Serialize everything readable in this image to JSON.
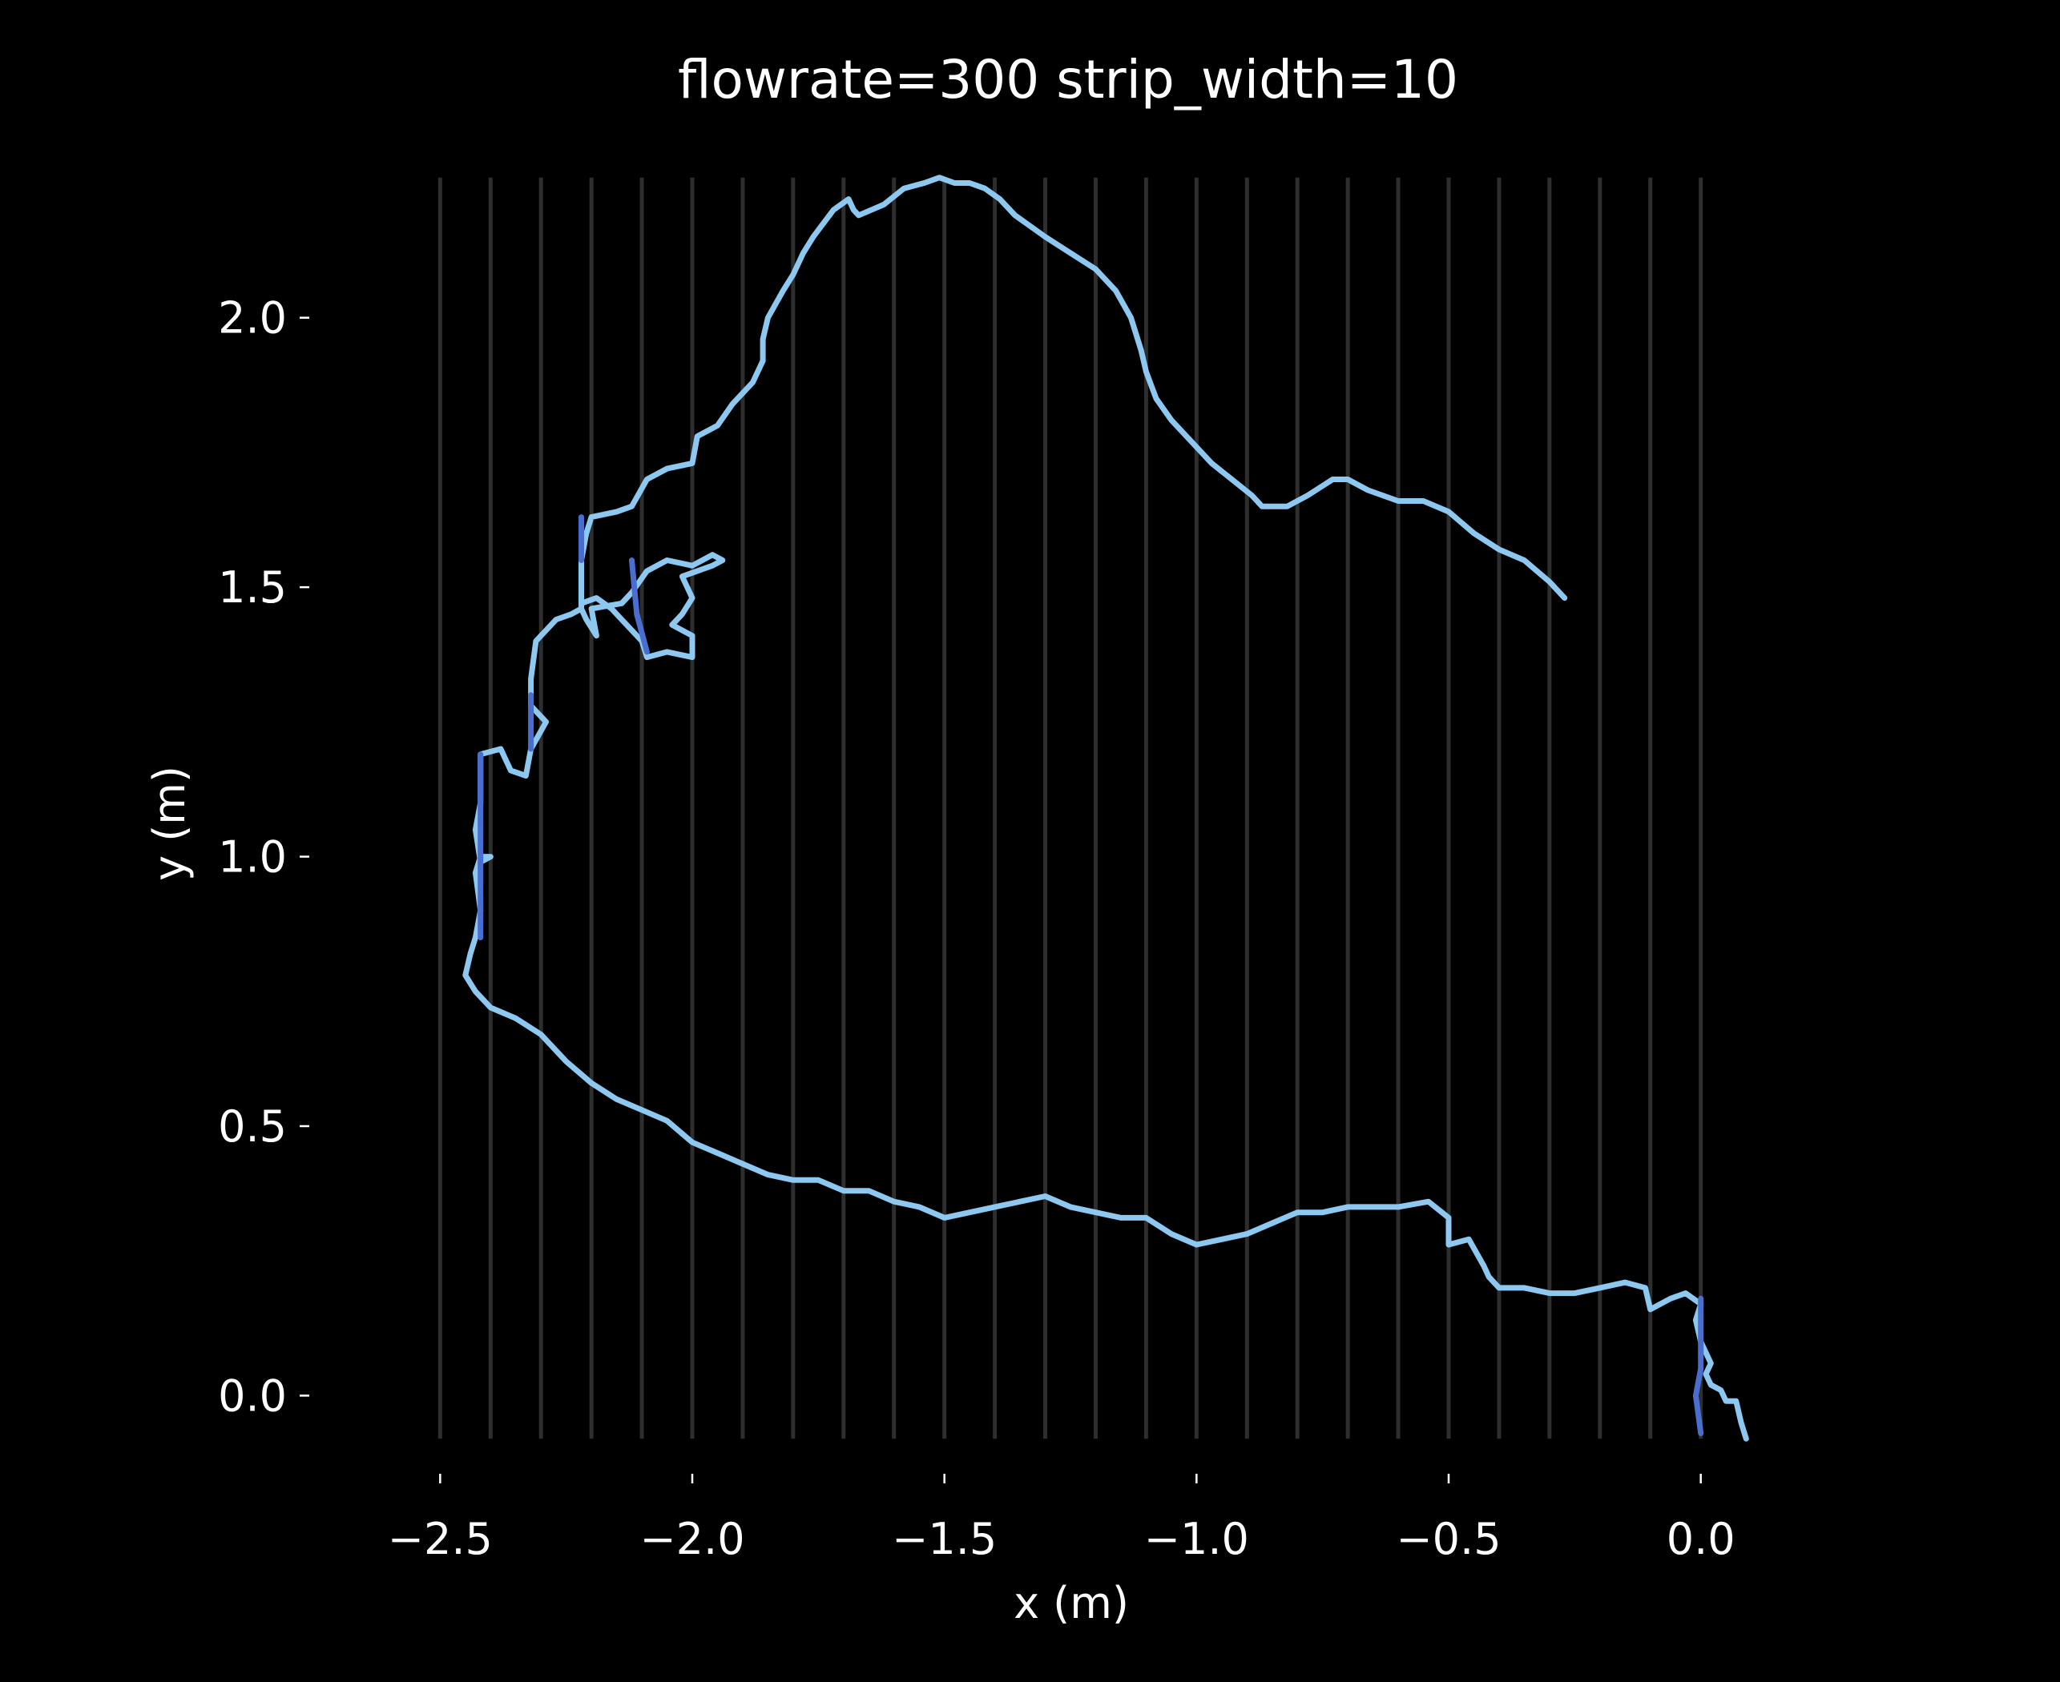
{
  "chart_data": {
    "type": "line",
    "title": "flowrate=300 strip_width=10",
    "xlabel": "x (m)",
    "ylabel": "y (m)",
    "xlim": [
      -2.75,
      0.25
    ],
    "ylim": [
      -0.09,
      2.27
    ],
    "grid": false,
    "x_ticks": [
      -2.5,
      -2.0,
      -1.5,
      -1.0,
      -0.5,
      0.0
    ],
    "x_tick_labels": [
      "−2.5",
      "−2.0",
      "−1.5",
      "−1.0",
      "−0.5",
      "0.0"
    ],
    "y_ticks": [
      0.0,
      0.5,
      1.0,
      1.5,
      2.0
    ],
    "y_tick_labels": [
      "0.0",
      "0.5",
      "1.0",
      "1.5",
      "2.0"
    ],
    "strips": {
      "x": [
        -2.5,
        -2.4,
        -2.3,
        -2.2,
        -2.1,
        -2.0,
        -1.9,
        -1.8,
        -1.7,
        -1.6,
        -1.5,
        -1.4,
        -1.3,
        -1.2,
        -1.1,
        -1.0,
        -0.9,
        -0.8,
        -0.7,
        -0.6,
        -0.5,
        -0.4,
        -0.3,
        -0.2,
        -0.1,
        0.0
      ],
      "y_range": [
        -0.08,
        2.26
      ],
      "color": "#2e2e2e"
    },
    "series": [
      {
        "color": "#8cc8f0",
        "points": [
          [
            0.09,
            -0.08
          ],
          [
            0.08,
            -0.05
          ],
          [
            0.07,
            -0.01
          ],
          [
            0.05,
            -0.01
          ],
          [
            0.04,
            0.01
          ],
          [
            0.02,
            0.02
          ],
          [
            0.01,
            0.04
          ],
          [
            0.02,
            0.06
          ],
          [
            0.01,
            0.08
          ],
          [
            0.0,
            0.1
          ],
          [
            -0.01,
            0.14
          ],
          [
            0.0,
            0.17
          ],
          [
            -0.03,
            0.19
          ],
          [
            -0.06,
            0.18
          ],
          [
            -0.1,
            0.16
          ],
          [
            -0.11,
            0.2
          ],
          [
            -0.15,
            0.21
          ],
          [
            -0.2,
            0.2
          ],
          [
            -0.25,
            0.19
          ],
          [
            -0.3,
            0.19
          ],
          [
            -0.35,
            0.2
          ],
          [
            -0.4,
            0.2
          ],
          [
            -0.42,
            0.22
          ],
          [
            -0.43,
            0.24
          ],
          [
            -0.46,
            0.29
          ],
          [
            -0.5,
            0.28
          ],
          [
            -0.5,
            0.33
          ],
          [
            -0.54,
            0.36
          ],
          [
            -0.6,
            0.35
          ],
          [
            -0.65,
            0.35
          ],
          [
            -0.7,
            0.35
          ],
          [
            -0.75,
            0.34
          ],
          [
            -0.8,
            0.34
          ],
          [
            -0.85,
            0.32
          ],
          [
            -0.9,
            0.3
          ],
          [
            -0.95,
            0.29
          ],
          [
            -1.0,
            0.28
          ],
          [
            -1.05,
            0.3
          ],
          [
            -1.1,
            0.33
          ],
          [
            -1.15,
            0.33
          ],
          [
            -1.2,
            0.34
          ],
          [
            -1.25,
            0.35
          ],
          [
            -1.3,
            0.37
          ],
          [
            -1.35,
            0.36
          ],
          [
            -1.4,
            0.35
          ],
          [
            -1.45,
            0.34
          ],
          [
            -1.5,
            0.33
          ],
          [
            -1.55,
            0.35
          ],
          [
            -1.6,
            0.36
          ],
          [
            -1.65,
            0.38
          ],
          [
            -1.7,
            0.38
          ],
          [
            -1.75,
            0.4
          ],
          [
            -1.8,
            0.4
          ],
          [
            -1.85,
            0.41
          ],
          [
            -1.9,
            0.43
          ],
          [
            -1.95,
            0.45
          ],
          [
            -2.0,
            0.47
          ],
          [
            -2.0,
            0.47
          ],
          [
            -2.05,
            0.51
          ],
          [
            -2.1,
            0.53
          ],
          [
            -2.15,
            0.55
          ],
          [
            -2.2,
            0.58
          ],
          [
            -2.25,
            0.62
          ],
          [
            -2.3,
            0.67
          ],
          [
            -2.35,
            0.7
          ],
          [
            -2.4,
            0.72
          ],
          [
            -2.43,
            0.75
          ],
          [
            -2.45,
            0.78
          ],
          [
            -2.44,
            0.82
          ],
          [
            -2.43,
            0.85
          ],
          [
            -2.42,
            0.9
          ],
          [
            -2.43,
            0.97
          ],
          [
            -2.42,
            1.0
          ],
          [
            -2.4,
            1.0
          ],
          [
            -2.42,
            0.99
          ],
          [
            -2.43,
            1.05
          ],
          [
            -2.42,
            1.1
          ],
          [
            -2.42,
            1.19
          ],
          [
            -2.38,
            1.2
          ],
          [
            -2.36,
            1.16
          ],
          [
            -2.33,
            1.15
          ],
          [
            -2.32,
            1.2
          ],
          [
            -2.29,
            1.25
          ],
          [
            -2.32,
            1.28
          ],
          [
            -2.32,
            1.33
          ],
          [
            -2.31,
            1.4
          ],
          [
            -2.27,
            1.44
          ],
          [
            -2.24,
            1.45
          ],
          [
            -2.22,
            1.46
          ],
          [
            -2.22,
            1.5
          ],
          [
            -2.22,
            1.55
          ],
          [
            -2.21,
            1.6
          ],
          [
            -2.2,
            1.63
          ],
          [
            -2.15,
            1.64
          ],
          [
            -2.12,
            1.65
          ],
          [
            -2.09,
            1.7
          ],
          [
            -2.05,
            1.72
          ],
          [
            -2.0,
            1.73
          ],
          [
            -1.99,
            1.78
          ],
          [
            -1.95,
            1.8
          ],
          [
            -1.92,
            1.84
          ],
          [
            -1.88,
            1.88
          ],
          [
            -1.86,
            1.92
          ],
          [
            -1.86,
            1.96
          ],
          [
            -1.85,
            2.0
          ],
          [
            -1.82,
            2.05
          ],
          [
            -1.8,
            2.08
          ],
          [
            -1.78,
            2.12
          ],
          [
            -1.76,
            2.15
          ],
          [
            -1.72,
            2.2
          ],
          [
            -1.69,
            2.22
          ],
          [
            -1.68,
            2.2
          ],
          [
            -1.67,
            2.19
          ],
          [
            -1.62,
            2.21
          ],
          [
            -1.58,
            2.24
          ],
          [
            -1.54,
            2.25
          ],
          [
            -1.51,
            2.26
          ],
          [
            -1.48,
            2.25
          ],
          [
            -1.45,
            2.25
          ],
          [
            -1.42,
            2.24
          ],
          [
            -1.39,
            2.22
          ],
          [
            -1.36,
            2.19
          ],
          [
            -1.3,
            2.15
          ],
          [
            -1.25,
            2.12
          ],
          [
            -1.2,
            2.09
          ],
          [
            -1.16,
            2.05
          ],
          [
            -1.13,
            2.0
          ],
          [
            -1.11,
            1.94
          ],
          [
            -1.1,
            1.9
          ],
          [
            -1.08,
            1.85
          ],
          [
            -1.05,
            1.81
          ],
          [
            -1.01,
            1.77
          ],
          [
            -0.97,
            1.73
          ],
          [
            -0.93,
            1.7
          ],
          [
            -0.89,
            1.67
          ],
          [
            -0.87,
            1.65
          ],
          [
            -0.82,
            1.65
          ],
          [
            -0.78,
            1.67
          ],
          [
            -0.73,
            1.7
          ],
          [
            -0.7,
            1.7
          ],
          [
            -0.66,
            1.68
          ],
          [
            -0.6,
            1.66
          ],
          [
            -0.55,
            1.66
          ],
          [
            -0.5,
            1.64
          ],
          [
            -0.45,
            1.6
          ],
          [
            -0.4,
            1.57
          ],
          [
            -0.35,
            1.55
          ],
          [
            -0.3,
            1.51
          ],
          [
            -0.27,
            1.48
          ]
        ]
      },
      {
        "color": "#8cc8f0",
        "points": [
          [
            -2.22,
            1.46
          ],
          [
            -2.21,
            1.44
          ],
          [
            -2.19,
            1.41
          ],
          [
            -2.2,
            1.46
          ],
          [
            -2.14,
            1.47
          ],
          [
            -2.12,
            1.49
          ],
          [
            -2.09,
            1.53
          ],
          [
            -2.05,
            1.55
          ],
          [
            -2.0,
            1.54
          ],
          [
            -1.96,
            1.56
          ],
          [
            -1.94,
            1.55
          ],
          [
            -1.96,
            1.54
          ],
          [
            -1.99,
            1.53
          ],
          [
            -2.02,
            1.52
          ],
          [
            -2.0,
            1.48
          ],
          [
            -2.02,
            1.45
          ],
          [
            -2.04,
            1.43
          ],
          [
            -2.0,
            1.41
          ],
          [
            -2.0,
            1.37
          ],
          [
            -2.05,
            1.38
          ],
          [
            -2.09,
            1.37
          ],
          [
            -2.1,
            1.4
          ],
          [
            -2.14,
            1.44
          ],
          [
            -2.16,
            1.46
          ],
          [
            -2.19,
            1.48
          ],
          [
            -2.22,
            1.47
          ]
        ]
      },
      {
        "color": "#4a6ed0",
        "points": [
          [
            -2.42,
            0.85
          ],
          [
            -2.42,
            0.95
          ],
          [
            -2.42,
            1.05
          ],
          [
            -2.42,
            1.19
          ]
        ]
      },
      {
        "color": "#4a6ed0",
        "points": [
          [
            -2.22,
            1.55
          ],
          [
            -2.22,
            1.63
          ]
        ]
      },
      {
        "color": "#4a6ed0",
        "points": [
          [
            -2.12,
            1.55
          ],
          [
            -2.11,
            1.45
          ],
          [
            -2.09,
            1.38
          ]
        ]
      },
      {
        "color": "#4a6ed0",
        "points": [
          [
            0.0,
            -0.07
          ],
          [
            -0.01,
            0.0
          ],
          [
            0.0,
            0.05
          ],
          [
            0.0,
            0.1
          ],
          [
            0.0,
            0.18
          ]
        ]
      },
      {
        "color": "#4a6ed0",
        "points": [
          [
            -2.32,
            1.2
          ],
          [
            -2.32,
            1.3
          ]
        ]
      }
    ]
  }
}
